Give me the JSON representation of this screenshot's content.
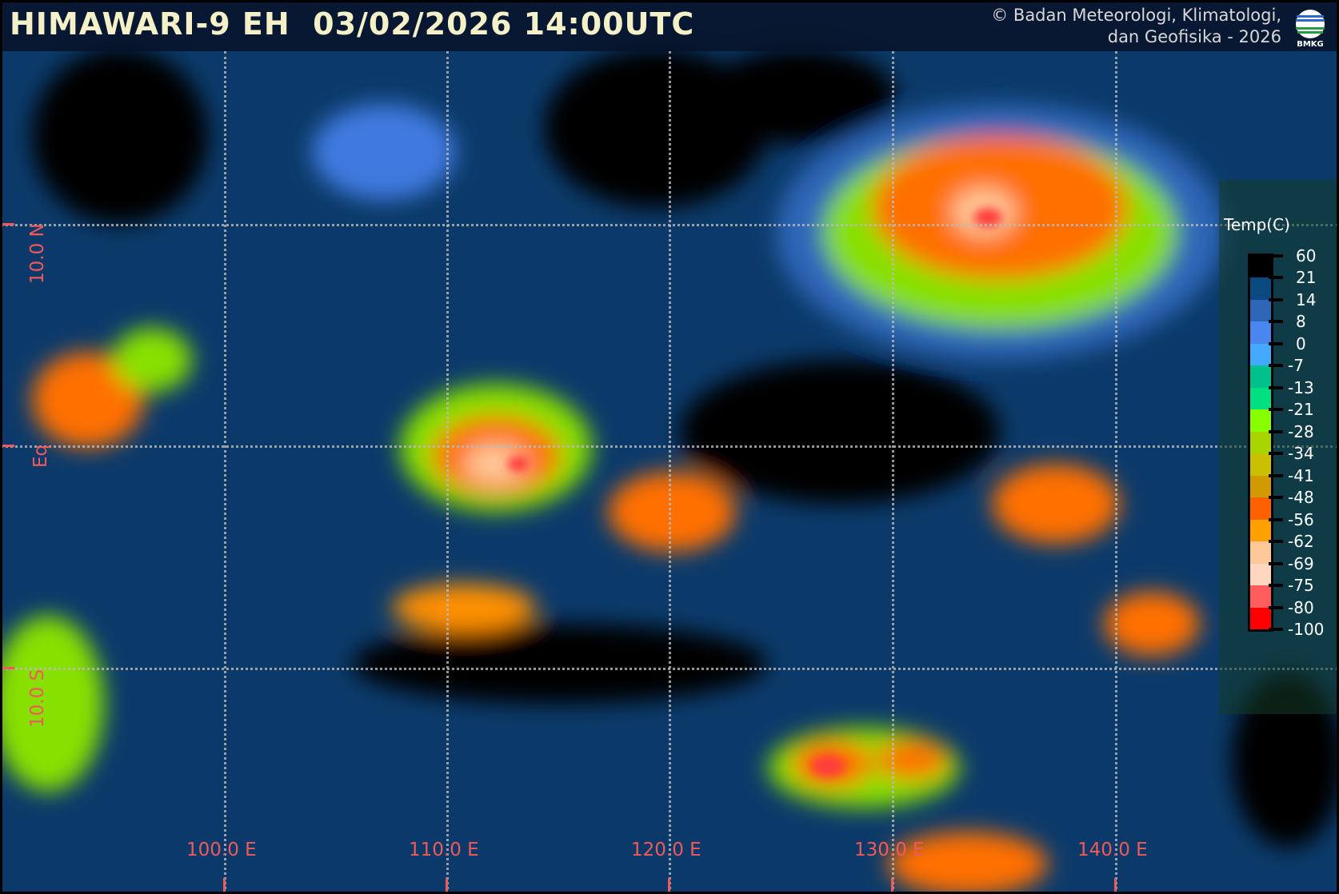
{
  "header": {
    "title": "HIMAWARI-9 EH  03/02/2026 14:00UTC",
    "copyright_line1": "© Badan Meteorologi, Klimatologi,",
    "copyright_line2": "dan Geofisika -  2026",
    "logo_text": "BMKG"
  },
  "grid": {
    "longitude_labels": [
      "100.0 E",
      "110.0 E",
      "120.0 E",
      "130.0 E",
      "140.0 E"
    ],
    "latitude_labels": [
      "10.0 N",
      "Eq",
      "10.0 S"
    ]
  },
  "legend": {
    "title": "Temp(C)",
    "values": [
      "60",
      "21",
      "14",
      "8",
      "0",
      "-7",
      "-13",
      "-21",
      "-28",
      "-34",
      "-41",
      "-48",
      "-56",
      "-62",
      "-69",
      "-75",
      "-80",
      "-100"
    ],
    "colors": [
      "#000000",
      "#0a4a80",
      "#2f66b8",
      "#4a86f0",
      "#44aaff",
      "#00c08c",
      "#00e080",
      "#88ff00",
      "#a8d400",
      "#c8c000",
      "#d09a00",
      "#ff6000",
      "#ffa000",
      "#ffc898",
      "#ffd6c0",
      "#ff5c5c",
      "#ff0000"
    ]
  }
}
